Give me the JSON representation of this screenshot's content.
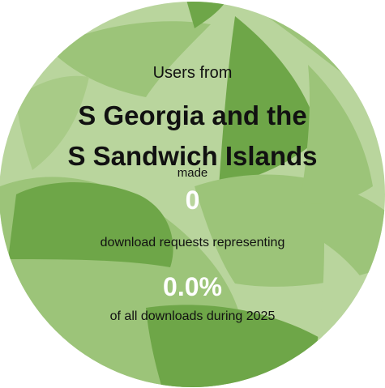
{
  "card": {
    "intro": "Users from",
    "country": "S Georgia and the S Sandwich Islands",
    "made": "made",
    "count": "0",
    "representing": "download requests representing",
    "percent": "0.0%",
    "period": "of all downloads during 2025"
  },
  "colors": {
    "light": "#b9d59d",
    "mid": "#9cc479",
    "dark": "#6ea648",
    "accent": "#5f9a3c"
  }
}
